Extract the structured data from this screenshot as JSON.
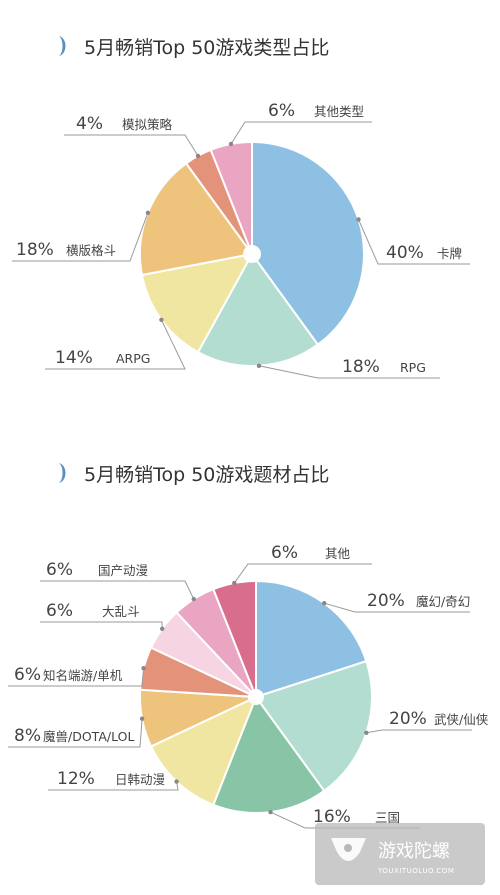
{
  "chart_data": [
    {
      "type": "pie",
      "title": "5月畅销Top 50游戏类型占比",
      "slices": [
        {
          "label": "卡牌",
          "value": 40,
          "value_label": "40%",
          "color": "#8ec0e4"
        },
        {
          "label": "RPG",
          "value": 18,
          "value_label": "18%",
          "color": "#b4ddd2"
        },
        {
          "label": "ARPG",
          "value": 14,
          "value_label": "14%",
          "color": "#f0e6a2"
        },
        {
          "label": "横版格斗",
          "value": 18,
          "value_label": "18%",
          "color": "#eec47c"
        },
        {
          "label": "模拟策略",
          "value": 4,
          "value_label": "4%",
          "color": "#e29379"
        },
        {
          "label": "其他类型",
          "value": 6,
          "value_label": "6%",
          "color": "#e9a5c2"
        }
      ]
    },
    {
      "type": "pie",
      "title": "5月畅销Top 50游戏题材占比",
      "slices": [
        {
          "label": "魔幻/奇幻",
          "value": 20,
          "value_label": "20%",
          "color": "#8ec0e4"
        },
        {
          "label": "武侠/仙侠",
          "value": 20,
          "value_label": "20%",
          "color": "#b4ddd2"
        },
        {
          "label": "三国",
          "value": 16,
          "value_label": "16%",
          "color": "#88c4a6"
        },
        {
          "label": "日韩动漫",
          "value": 12,
          "value_label": "12%",
          "color": "#f0e6a2"
        },
        {
          "label": "魔兽/DOTA/LOL",
          "value": 8,
          "value_label": "8%",
          "color": "#eec47c"
        },
        {
          "label": "知名端游/单机",
          "value": 6,
          "value_label": "6%",
          "color": "#e29379"
        },
        {
          "label": "大乱斗",
          "value": 6,
          "value_label": "6%",
          "color": "#f6d4e2"
        },
        {
          "label": "国产动漫",
          "value": 6,
          "value_label": "6%",
          "color": "#e9a5c2"
        },
        {
          "label": "其他",
          "value": 6,
          "value_label": "6%",
          "color": "#d96e8c"
        }
      ]
    }
  ],
  "accent_color": "#5d8fbf",
  "watermark": {
    "name": "游戏陀螺",
    "sub": "YOUXITUOLUO.COM"
  }
}
